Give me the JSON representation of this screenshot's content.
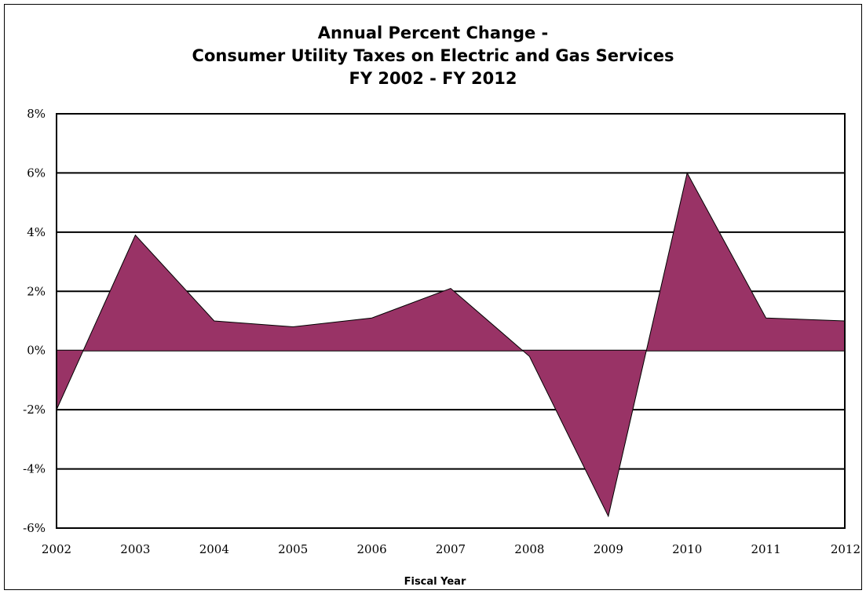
{
  "chart_data": {
    "type": "area",
    "title_lines": [
      "Annual Percent Change -",
      "Consumer Utility Taxes on Electric and Gas Services",
      "FY 2002 - FY 2012"
    ],
    "xlabel": "Fiscal Year",
    "ylabel": "",
    "x": [
      "2002",
      "2003",
      "2004",
      "2005",
      "2006",
      "2007",
      "2008",
      "2009",
      "2010",
      "2011",
      "2012"
    ],
    "values": [
      -2.0,
      3.9,
      1.0,
      0.8,
      1.1,
      2.1,
      -0.2,
      -5.6,
      6.0,
      1.1,
      1.0
    ],
    "ylim": [
      -6,
      8
    ],
    "yticks": [
      8,
      6,
      4,
      2,
      0,
      -2,
      -4,
      -6
    ],
    "ytick_labels": [
      "8%",
      "6%",
      "4%",
      "2%",
      "0%",
      "-2%",
      "-4%",
      "-6%"
    ],
    "grid": true,
    "fill_color": "#993366",
    "line_color": "#000000"
  }
}
